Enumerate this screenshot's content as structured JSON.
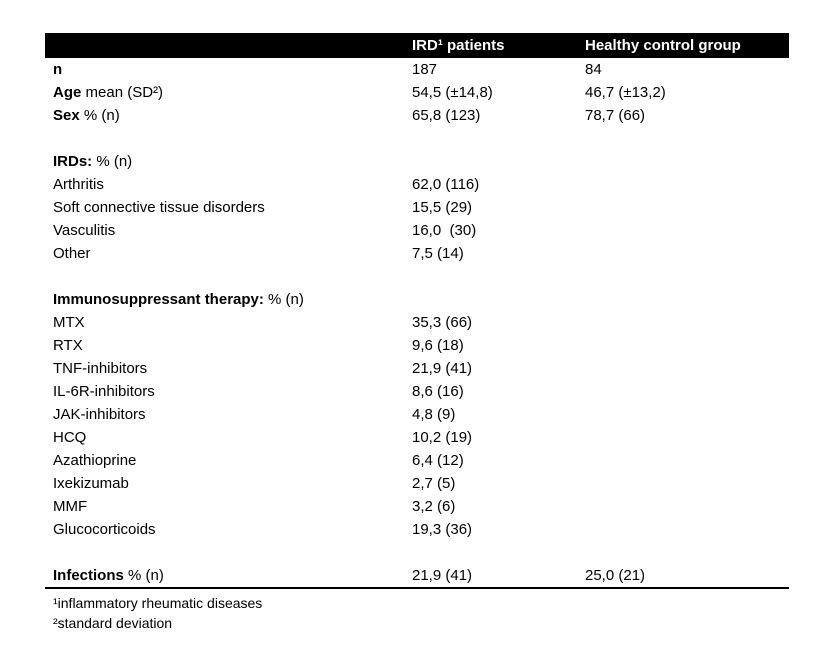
{
  "colors": {
    "header_bg": "#000000",
    "header_text": "#ffffff",
    "body_text": "#000000",
    "page_bg": "#ffffff"
  },
  "table": {
    "header": {
      "col1": "",
      "col2": "IRD¹ patients",
      "col3": "Healthy control group"
    },
    "rows": [
      {
        "type": "data",
        "bold": "n",
        "rest": "",
        "v1": "187",
        "v2": "84"
      },
      {
        "type": "data",
        "bold": "Age",
        "rest": " mean (SD²)",
        "v1": "54,5 (±14,8)",
        "v2": "46,7 (±13,2)"
      },
      {
        "type": "data",
        "bold": "Sex",
        "rest": " % (n)",
        "v1": "65,8 (123)",
        "v2": "78,7 (66)"
      },
      {
        "type": "spacer"
      },
      {
        "type": "data",
        "bold": "IRDs:",
        "rest": " % (n)",
        "v1": "",
        "v2": ""
      },
      {
        "type": "data",
        "bold": "",
        "rest": "Arthritis",
        "v1": "62,0 (116)",
        "v2": ""
      },
      {
        "type": "data",
        "bold": "",
        "rest": "Soft connective tissue disorders",
        "v1": "15,5 (29)",
        "v2": ""
      },
      {
        "type": "data",
        "bold": "",
        "rest": "Vasculitis",
        "v1": "16,0  (30)",
        "v2": ""
      },
      {
        "type": "data",
        "bold": "",
        "rest": "Other",
        "v1": "7,5 (14)",
        "v2": ""
      },
      {
        "type": "spacer"
      },
      {
        "type": "data",
        "bold": "Immunosuppressant therapy:",
        "rest": " % (n)",
        "v1": "",
        "v2": ""
      },
      {
        "type": "data",
        "bold": "",
        "rest": "MTX",
        "v1": "35,3 (66)",
        "v2": ""
      },
      {
        "type": "data",
        "bold": "",
        "rest": "RTX",
        "v1": "9,6 (18)",
        "v2": ""
      },
      {
        "type": "data",
        "bold": "",
        "rest": "TNF-inhibitors",
        "v1": "21,9 (41)",
        "v2": ""
      },
      {
        "type": "data",
        "bold": "",
        "rest": "IL-6R-inhibitors",
        "v1": "8,6 (16)",
        "v2": ""
      },
      {
        "type": "data",
        "bold": "",
        "rest": "JAK-inhibitors",
        "v1": "4,8 (9)",
        "v2": ""
      },
      {
        "type": "data",
        "bold": "",
        "rest": "HCQ",
        "v1": "10,2 (19)",
        "v2": ""
      },
      {
        "type": "data",
        "bold": "",
        "rest": "Azathioprine",
        "v1": "6,4 (12)",
        "v2": ""
      },
      {
        "type": "data",
        "bold": "",
        "rest": "Ixekizumab",
        "v1": "2,7 (5)",
        "v2": ""
      },
      {
        "type": "data",
        "bold": "",
        "rest": "MMF",
        "v1": "3,2 (6)",
        "v2": ""
      },
      {
        "type": "data",
        "bold": "",
        "rest": "Glucocorticoids",
        "v1": "19,3 (36)",
        "v2": ""
      },
      {
        "type": "spacer"
      },
      {
        "type": "data",
        "bold": "Infections",
        "rest": " % (n)",
        "v1": "21,9 (41)",
        "v2": "25,0 (21)"
      }
    ],
    "footnotes": [
      "¹inflammatory rheumatic diseases",
      "²standard deviation"
    ]
  }
}
